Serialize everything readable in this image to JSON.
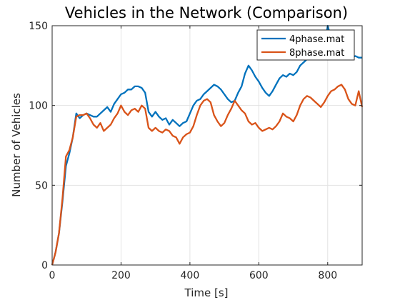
{
  "chart_data": {
    "type": "line",
    "title": "Vehicles in the Network (Comparison)",
    "xlabel": "Time [s]",
    "ylabel": "Number of Vehicles",
    "xlim": [
      0,
      900
    ],
    "ylim": [
      0,
      150
    ],
    "xticks": [
      0,
      200,
      400,
      600,
      800
    ],
    "yticks": [
      0,
      50,
      100,
      150
    ],
    "grid": true,
    "legend_position": "top-right",
    "series": [
      {
        "name": "4phase.mat",
        "color": "#0072BD",
        "x": [
          0,
          10,
          20,
          30,
          40,
          50,
          60,
          70,
          80,
          90,
          100,
          110,
          120,
          130,
          140,
          150,
          160,
          170,
          180,
          190,
          200,
          210,
          220,
          230,
          240,
          250,
          260,
          270,
          280,
          290,
          300,
          310,
          320,
          330,
          340,
          350,
          360,
          370,
          380,
          390,
          400,
          410,
          420,
          430,
          440,
          450,
          460,
          470,
          480,
          490,
          500,
          510,
          520,
          530,
          540,
          550,
          560,
          570,
          580,
          590,
          600,
          610,
          620,
          630,
          640,
          650,
          660,
          670,
          680,
          690,
          700,
          710,
          720,
          730,
          740,
          750,
          760,
          770,
          780,
          790,
          800,
          810,
          820,
          830,
          840,
          850,
          860,
          870,
          880,
          890,
          900
        ],
        "y": [
          0,
          8,
          20,
          40,
          62,
          70,
          80,
          95,
          92,
          94,
          95,
          94,
          93,
          93,
          95,
          97,
          99,
          96,
          101,
          104,
          107,
          108,
          110,
          110,
          112,
          112,
          111,
          108,
          96,
          93,
          96,
          93,
          91,
          92,
          88,
          91,
          89,
          87,
          89,
          90,
          95,
          100,
          103,
          104,
          107,
          109,
          111,
          113,
          112,
          110,
          107,
          104,
          102,
          103,
          108,
          112,
          120,
          125,
          122,
          118,
          115,
          111,
          108,
          106,
          109,
          113,
          117,
          119,
          118,
          120,
          119,
          121,
          125,
          127,
          129,
          130,
          129,
          132,
          134,
          136,
          150,
          142,
          136,
          134,
          136,
          135,
          132,
          130,
          131,
          130,
          130
        ]
      },
      {
        "name": "8phase.mat",
        "color": "#D95319",
        "x": [
          0,
          10,
          20,
          30,
          40,
          50,
          60,
          70,
          80,
          90,
          100,
          110,
          120,
          130,
          140,
          150,
          160,
          170,
          180,
          190,
          200,
          210,
          220,
          230,
          240,
          250,
          260,
          270,
          280,
          290,
          300,
          310,
          320,
          330,
          340,
          350,
          360,
          370,
          380,
          390,
          400,
          410,
          420,
          430,
          440,
          450,
          460,
          470,
          480,
          490,
          500,
          510,
          520,
          530,
          540,
          550,
          560,
          570,
          580,
          590,
          600,
          610,
          620,
          630,
          640,
          650,
          660,
          670,
          680,
          690,
          700,
          710,
          720,
          730,
          740,
          750,
          760,
          770,
          780,
          790,
          800,
          810,
          820,
          830,
          840,
          850,
          860,
          870,
          880,
          890,
          900
        ],
        "y": [
          0,
          8,
          20,
          42,
          68,
          72,
          80,
          93,
          94,
          94,
          95,
          92,
          88,
          86,
          89,
          84,
          86,
          88,
          92,
          95,
          100,
          96,
          94,
          97,
          98,
          96,
          100,
          98,
          86,
          84,
          86,
          84,
          83,
          85,
          84,
          81,
          80,
          76,
          80,
          82,
          83,
          87,
          94,
          100,
          103,
          104,
          102,
          94,
          90,
          87,
          89,
          94,
          98,
          103,
          100,
          97,
          95,
          90,
          88,
          89,
          86,
          84,
          85,
          86,
          85,
          87,
          90,
          95,
          93,
          92,
          90,
          94,
          100,
          104,
          106,
          105,
          103,
          101,
          99,
          102,
          106,
          109,
          110,
          112,
          113,
          110,
          104,
          101,
          100,
          109,
          99
        ]
      }
    ]
  }
}
